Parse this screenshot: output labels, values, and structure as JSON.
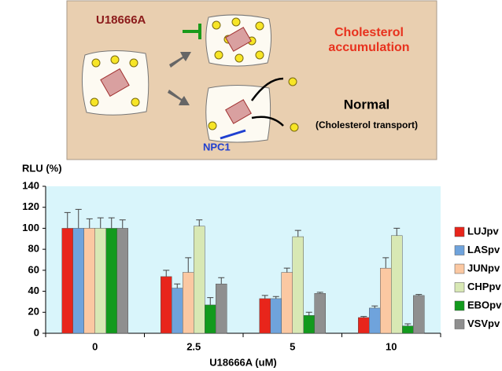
{
  "diagram": {
    "inhibitor": "U18666A",
    "accumulation": [
      "Cholesterol",
      "accumulation"
    ],
    "normal": "Normal",
    "transport": "(Cholesterol transport)",
    "receptor": "NPC1"
  },
  "chart_data": {
    "type": "bar",
    "ylabel": "RLU (%)",
    "xlabel": "U18666A (uM)",
    "categories": [
      "0",
      "2.5",
      "5",
      "10"
    ],
    "ylim": [
      0,
      140
    ],
    "yticks": [
      0,
      20,
      40,
      60,
      80,
      100,
      120,
      140
    ],
    "legend": "right",
    "series": [
      {
        "name": "LUJpv",
        "color": "#e8251b",
        "values": [
          100,
          54,
          33,
          15
        ],
        "errors": [
          15,
          6,
          3,
          1
        ]
      },
      {
        "name": "LASpv",
        "color": "#6fa3dc",
        "values": [
          100,
          43,
          33,
          24
        ],
        "errors": [
          18,
          4,
          2,
          2
        ]
      },
      {
        "name": "JUNpv",
        "color": "#fbc8a2",
        "values": [
          100,
          58,
          58,
          62
        ],
        "errors": [
          9,
          14,
          4,
          10
        ]
      },
      {
        "name": "CHPpv",
        "color": "#d8e8b4",
        "values": [
          100,
          102,
          92,
          93
        ],
        "errors": [
          10,
          6,
          6,
          7
        ]
      },
      {
        "name": "EBOpv",
        "color": "#129a1d",
        "values": [
          100,
          27,
          17,
          7
        ],
        "errors": [
          10,
          7,
          3,
          2
        ]
      },
      {
        "name": "VSVpv",
        "color": "#8f8f8f",
        "values": [
          100,
          47,
          38,
          36
        ],
        "errors": [
          8,
          6,
          1,
          1
        ]
      }
    ]
  }
}
